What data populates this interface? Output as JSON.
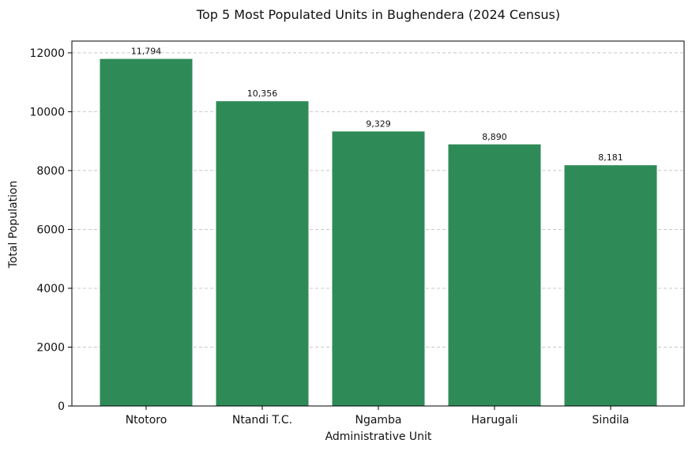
{
  "chart_data": {
    "type": "bar",
    "title": "Top 5 Most Populated Units in Bughendera (2024 Census)",
    "xlabel": "Administrative Unit",
    "ylabel": "Total Population",
    "categories": [
      "Ntotoro",
      "Ntandi T.C.",
      "Ngamba",
      "Harugali",
      "Sindila"
    ],
    "values": [
      11794,
      10356,
      9329,
      8890,
      8181
    ],
    "value_labels": [
      "11,794",
      "10,356",
      "9,329",
      "8,890",
      "8,181"
    ],
    "ylim": [
      0,
      12400
    ],
    "yticks": [
      0,
      2000,
      4000,
      6000,
      8000,
      10000,
      12000
    ],
    "ytick_labels": [
      "0",
      "2000",
      "4000",
      "6000",
      "8000",
      "10000",
      "12000"
    ],
    "grid": "horizontal-dashed",
    "bar_color": "#2e8b57"
  }
}
